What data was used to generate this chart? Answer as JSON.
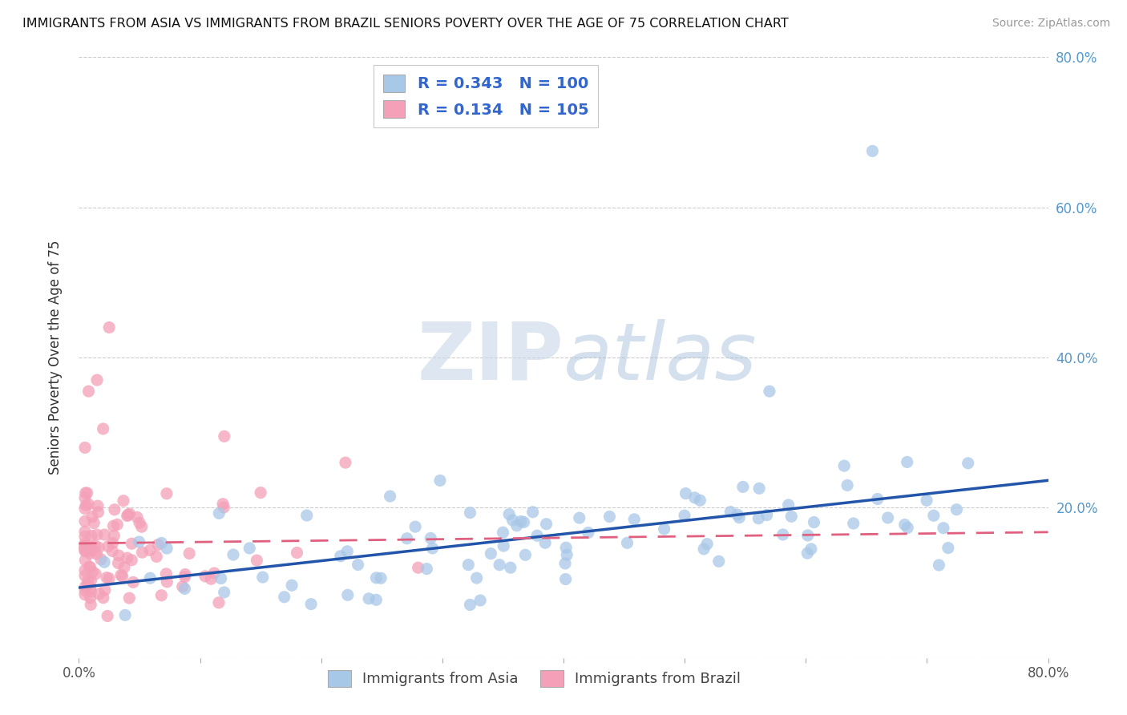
{
  "title": "IMMIGRANTS FROM ASIA VS IMMIGRANTS FROM BRAZIL SENIORS POVERTY OVER THE AGE OF 75 CORRELATION CHART",
  "source": "Source: ZipAtlas.com",
  "ylabel": "Seniors Poverty Over the Age of 75",
  "xlim": [
    0.0,
    0.8
  ],
  "ylim": [
    0.0,
    0.8
  ],
  "asia_R": 0.343,
  "asia_N": 100,
  "brazil_R": 0.134,
  "brazil_N": 105,
  "asia_color": "#a8c8e8",
  "brazil_color": "#f4a0b8",
  "asia_line_color": "#2255aa",
  "brazil_line_color": "#e06080",
  "legend_asia_label": "Immigrants from Asia",
  "legend_brazil_label": "Immigrants from Brazil",
  "watermark_zip": "ZIP",
  "watermark_atlas": "atlas",
  "background_color": "#ffffff",
  "grid_color": "#cccccc",
  "right_tick_color": "#5599cc"
}
